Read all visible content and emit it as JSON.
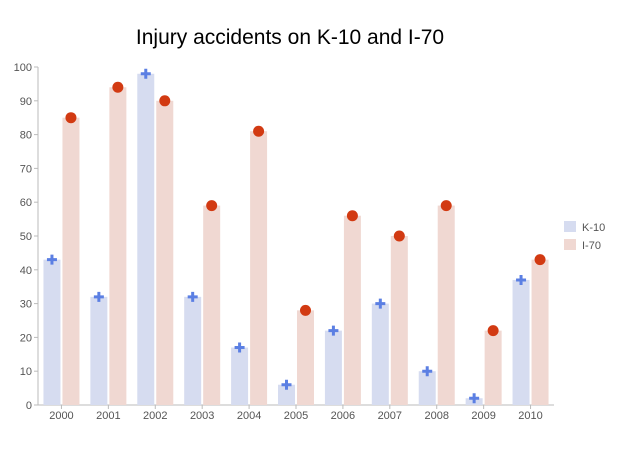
{
  "chart_data": {
    "type": "bar",
    "title": "Injury accidents on K-10 and I-70",
    "categories": [
      "2000",
      "2001",
      "2002",
      "2003",
      "2004",
      "2005",
      "2006",
      "2007",
      "2008",
      "2009",
      "2010"
    ],
    "series": [
      {
        "name": "K-10",
        "values": [
          43,
          32,
          98,
          32,
          17,
          6,
          22,
          30,
          10,
          2,
          37
        ],
        "color": "#d6dcf0",
        "marker": "plus",
        "marker_color": "#5b7fe3"
      },
      {
        "name": "I-70",
        "values": [
          85,
          94,
          90,
          59,
          81,
          28,
          56,
          50,
          59,
          22,
          43
        ],
        "color": "#f0d8d2",
        "marker": "circle",
        "marker_color": "#d23a12"
      }
    ],
    "ylim": [
      0,
      100
    ],
    "yticks": [
      0,
      10,
      20,
      30,
      40,
      50,
      60,
      70,
      80,
      90,
      100
    ],
    "xlabel": "",
    "ylabel": "",
    "grid": false,
    "legend_position": "right"
  }
}
